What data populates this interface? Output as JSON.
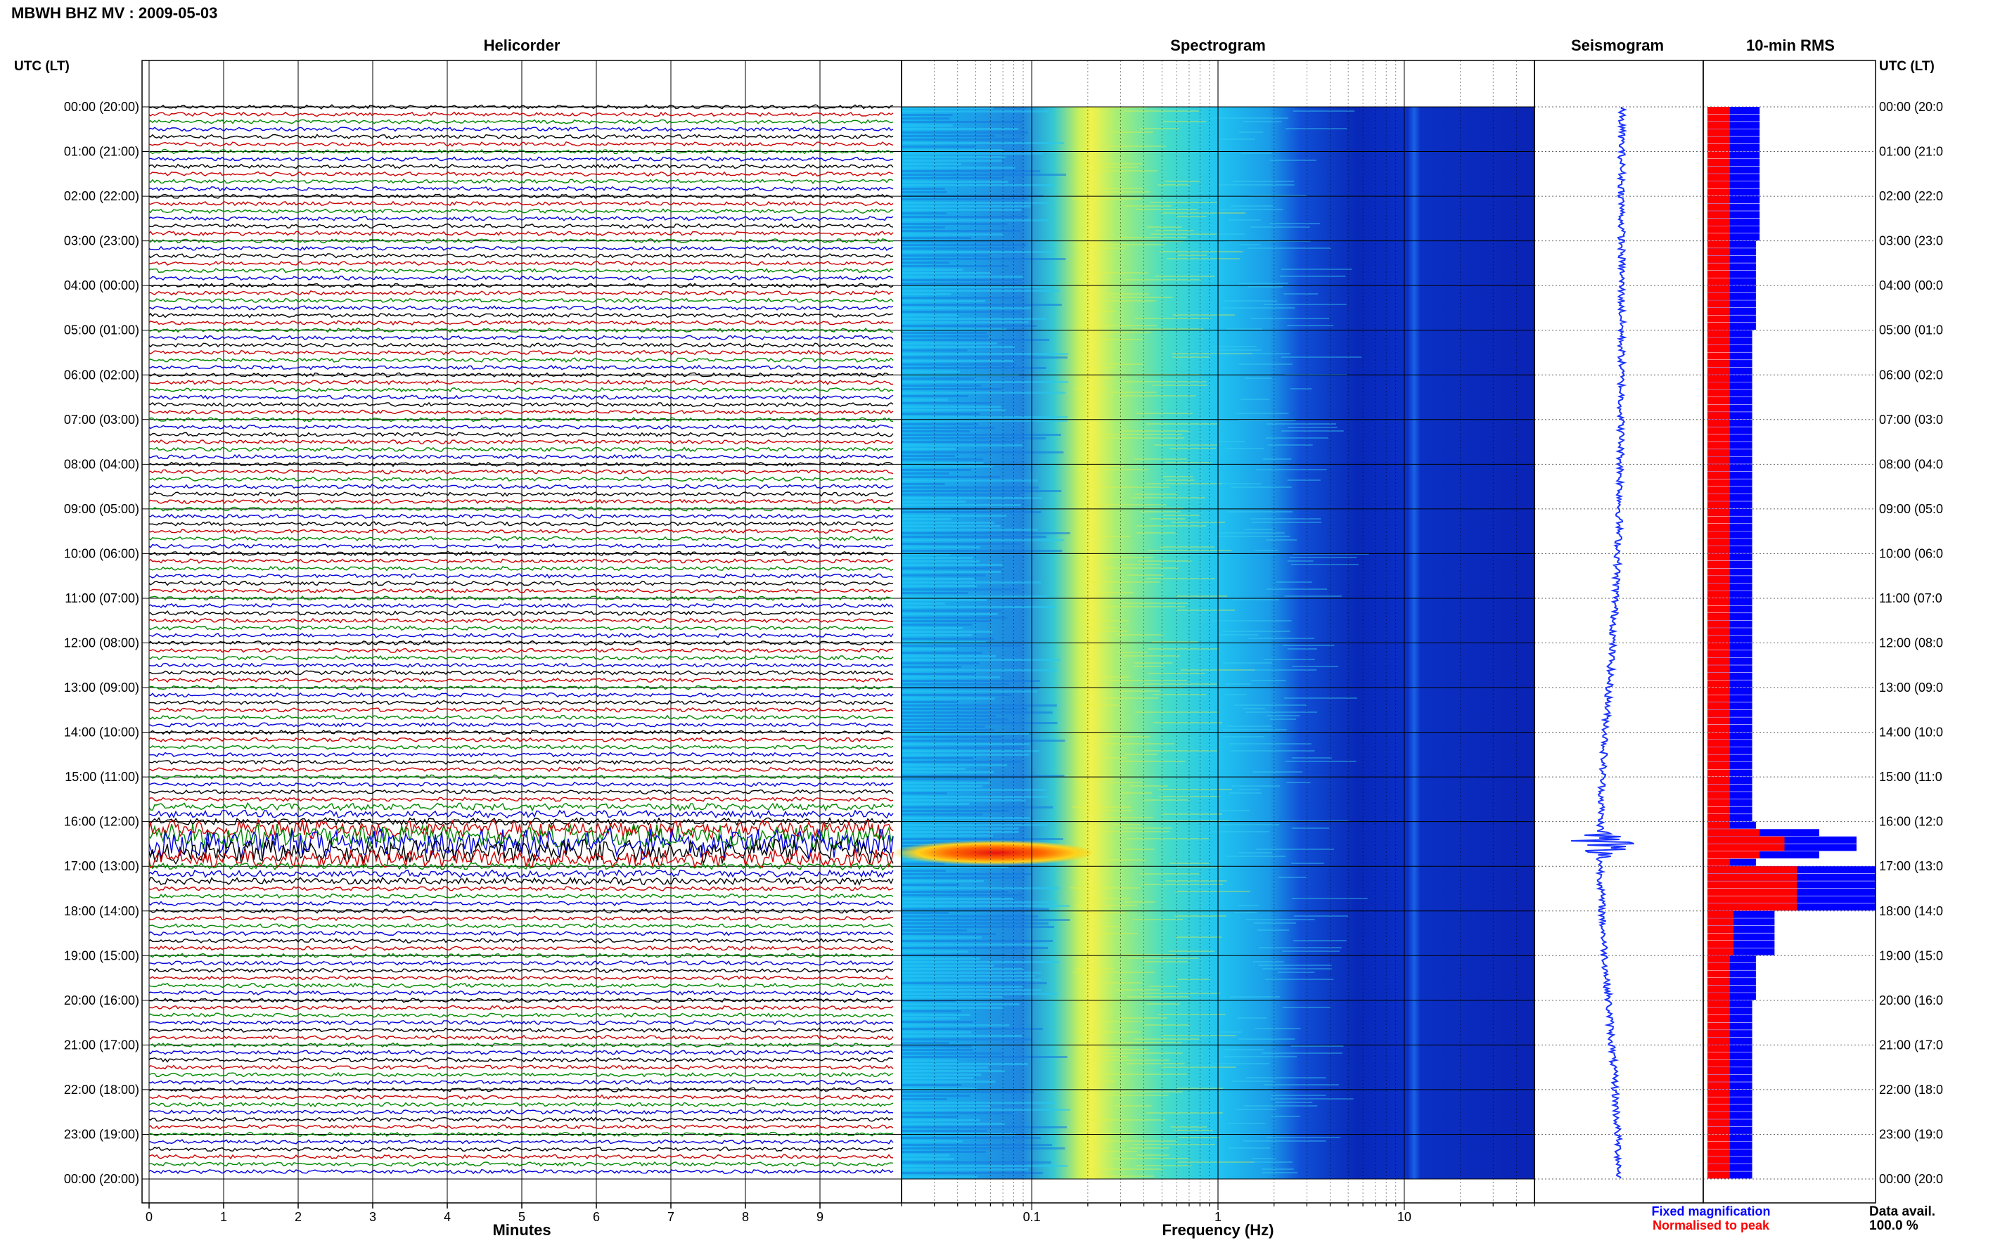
{
  "header": {
    "title": "MBWH BHZ MV : 2009-05-03"
  },
  "panels": {
    "helicorder": "Helicorder",
    "spectrogram": "Spectrogram",
    "seismogram": "Seismogram",
    "rms": "10-min RMS"
  },
  "time_axis_label_left": "UTC (LT)",
  "time_axis_label_right": "UTC (LT)",
  "hour_labels": [
    "00:00 (20:00)",
    "01:00 (21:00)",
    "02:00 (22:00)",
    "03:00 (23:00)",
    "04:00 (00:00)",
    "05:00 (01:00)",
    "06:00 (02:00)",
    "07:00 (03:00)",
    "08:00 (04:00)",
    "09:00 (05:00)",
    "10:00 (06:00)",
    "11:00 (07:00)",
    "12:00 (08:00)",
    "13:00 (09:00)",
    "14:00 (10:00)",
    "15:00 (11:00)",
    "16:00 (12:00)",
    "17:00 (13:00)",
    "18:00 (14:00)",
    "19:00 (15:00)",
    "20:00 (16:00)",
    "21:00 (17:00)",
    "22:00 (18:00)",
    "23:00 (19:00)",
    "00:00 (20:00)"
  ],
  "hour_labels_right": [
    "00:00 (20:0",
    "01:00 (21:0",
    "02:00 (22:0",
    "03:00 (23:0",
    "04:00 (00:0",
    "05:00 (01:0",
    "06:00 (02:0",
    "07:00 (03:0",
    "08:00 (04:0",
    "09:00 (05:0",
    "10:00 (06:0",
    "11:00 (07:0",
    "12:00 (08:0",
    "13:00 (09:0",
    "14:00 (10:0",
    "15:00 (11:0",
    "16:00 (12:0",
    "17:00 (13:0",
    "18:00 (14:0",
    "19:00 (15:0",
    "20:00 (16:0",
    "21:00 (17:0",
    "22:00 (18:0",
    "23:00 (19:0",
    "00:00 (20:0"
  ],
  "legend": {
    "fixed": "Fixed magnification",
    "normalised": "Normalised to peak",
    "data_avail_label": "Data avail.",
    "data_avail_value": "100.0 %"
  },
  "colors": {
    "trace_cycle": [
      "#000000",
      "#cc0000",
      "#008800",
      "#0000dd"
    ],
    "rms_fixed": "#0000ff",
    "rms_normalised": "#ff0000",
    "seismogram": "#1a33ff"
  },
  "chart_data": [
    {
      "type": "line",
      "panel": "helicorder",
      "xlabel": "Minutes",
      "xlim": [
        0,
        10
      ],
      "xticks": [
        0,
        1,
        2,
        3,
        4,
        5,
        6,
        7,
        8,
        9
      ],
      "xtick_labels": [
        "0",
        "1",
        "2",
        "3",
        "4",
        "5",
        "6",
        "7",
        "8",
        "9"
      ],
      "ylim_hours": [
        0,
        24
      ],
      "traces_per_hour": 6,
      "event_time_utc": "16:30",
      "grid": true
    },
    {
      "type": "heatmap",
      "panel": "spectrogram",
      "xlabel": "Frequency (Hz)",
      "xscale": "log",
      "xlim": [
        0.02,
        50
      ],
      "xticks": [
        0.1,
        1,
        10
      ],
      "xtick_labels": [
        "0.1",
        "1",
        "10"
      ],
      "peak_band_hz": [
        0.2,
        0.35
      ],
      "event_time_utc": "16:30",
      "event_band_hz": [
        0.04,
        0.2
      ],
      "grid": true
    },
    {
      "type": "line",
      "panel": "seismogram",
      "event_time_utc": "16:30"
    },
    {
      "type": "bar",
      "panel": "rms",
      "orientation": "horizontal",
      "interval_minutes": 10,
      "fixed_hourly": [
        0.14,
        0.14,
        0.14,
        0.13,
        0.13,
        0.12,
        0.12,
        0.12,
        0.12,
        0.12,
        0.12,
        0.12,
        0.12,
        0.12,
        0.12,
        0.12,
        0.13,
        0.45,
        0.18,
        0.13,
        0.12,
        0.12,
        0.12,
        0.12
      ],
      "normalised_hourly": [
        0.06,
        0.06,
        0.06,
        0.06,
        0.06,
        0.06,
        0.06,
        0.06,
        0.06,
        0.06,
        0.06,
        0.06,
        0.06,
        0.06,
        0.06,
        0.06,
        0.06,
        0.24,
        0.07,
        0.06,
        0.06,
        0.06,
        0.06,
        0.06
      ],
      "event_time_utc": "16:30"
    }
  ]
}
